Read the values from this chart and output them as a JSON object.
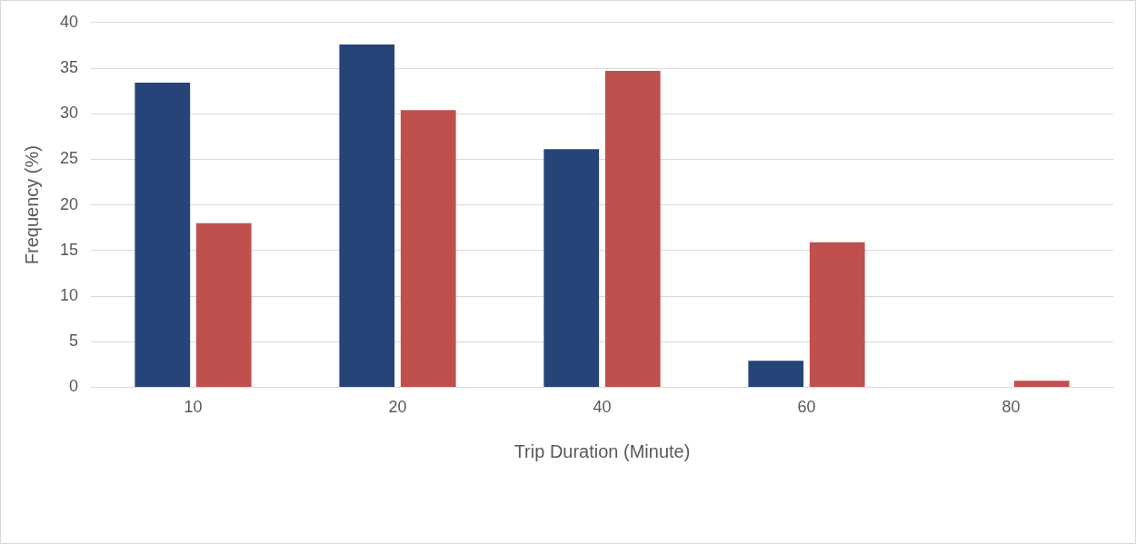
{
  "chart_data": {
    "type": "bar",
    "xlabel": "Trip Duration (Minute)",
    "ylabel": "Frequency (%)",
    "categories": [
      "10",
      "20",
      "40",
      "60",
      "80"
    ],
    "series": [
      {
        "color": "#264478",
        "values": [
          33.4,
          37.6,
          26.1,
          2.9,
          0
        ]
      },
      {
        "color": "#c0504d",
        "values": [
          18,
          30.4,
          34.7,
          15.9,
          0.7
        ]
      }
    ],
    "ylim": [
      0,
      40
    ],
    "yticks": [
      0,
      5,
      10,
      15,
      20,
      25,
      30,
      35,
      40
    ],
    "grid": "y",
    "legend": false
  }
}
